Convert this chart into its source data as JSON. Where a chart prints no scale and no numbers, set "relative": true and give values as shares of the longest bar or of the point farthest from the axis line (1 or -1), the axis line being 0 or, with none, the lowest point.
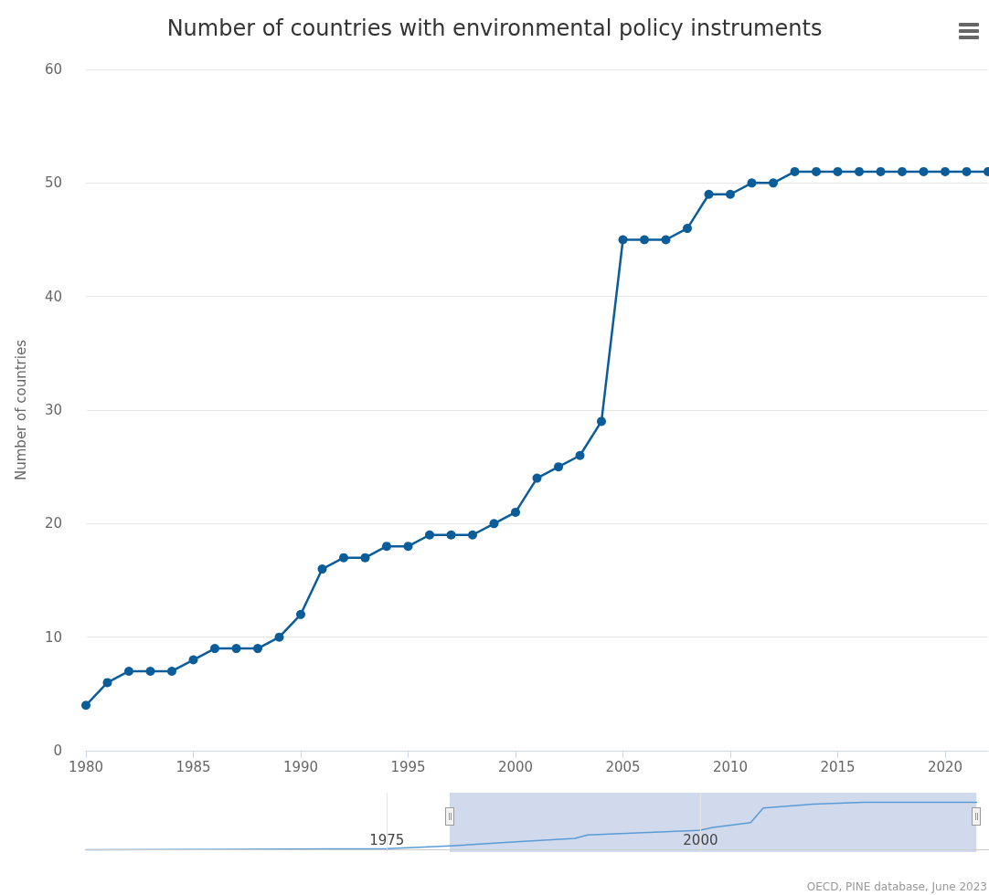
{
  "chart_data": [
    {
      "type": "line",
      "title": "Number of countries with environmental policy instruments",
      "ylabel": "Number of countries",
      "x": [
        1980,
        1981,
        1982,
        1983,
        1984,
        1985,
        1986,
        1987,
        1988,
        1989,
        1990,
        1991,
        1992,
        1993,
        1994,
        1995,
        1996,
        1997,
        1998,
        1999,
        2000,
        2001,
        2002,
        2003,
        2004,
        2005,
        2006,
        2007,
        2008,
        2009,
        2010,
        2011,
        2012,
        2013,
        2014,
        2015,
        2016,
        2017,
        2018,
        2019,
        2020,
        2021,
        2022
      ],
      "series": [
        {
          "color": "#0b5d9a",
          "values": [
            4,
            6,
            7,
            7,
            7,
            8,
            9,
            9,
            9,
            10,
            12,
            16,
            17,
            17,
            18,
            18,
            19,
            19,
            19,
            20,
            21,
            24,
            25,
            26,
            29,
            45,
            45,
            45,
            46,
            49,
            49,
            50,
            50,
            51,
            51,
            51,
            51,
            51,
            51,
            51,
            51,
            51,
            51
          ]
        }
      ],
      "xlim": [
        1980,
        2022
      ],
      "xticks": [
        1980,
        1985,
        1990,
        1995,
        2000,
        2005,
        2010,
        2015,
        2020
      ],
      "ylim": [
        0,
        60
      ],
      "yticks": [
        0,
        10,
        20,
        30,
        40,
        50,
        60
      ],
      "grid": "y",
      "marker": "circle",
      "line_style": "solid",
      "annotations": [
        "OECD, PINE database, June 2023"
      ]
    },
    {
      "type": "line",
      "relative": true,
      "x": [
        1951,
        1975,
        1980,
        1985,
        1990,
        1991,
        2000,
        2001,
        2004,
        2005,
        2009,
        2011,
        2013,
        2022
      ],
      "series": [
        {
          "color": "#5b9bd5",
          "values": [
            0,
            0.02,
            0.08,
            0.16,
            0.24,
            0.31,
            0.41,
            0.47,
            0.57,
            0.88,
            0.96,
            0.98,
            1,
            1
          ]
        }
      ],
      "xlim": [
        1951,
        2023
      ],
      "xticks": [
        1975,
        2000
      ],
      "grid": "x",
      "tick_labels": "x",
      "bands": [
        {
          "axis": "x",
          "from": 1980,
          "to": 2022,
          "color": "#ccd6eb"
        }
      ]
    }
  ]
}
